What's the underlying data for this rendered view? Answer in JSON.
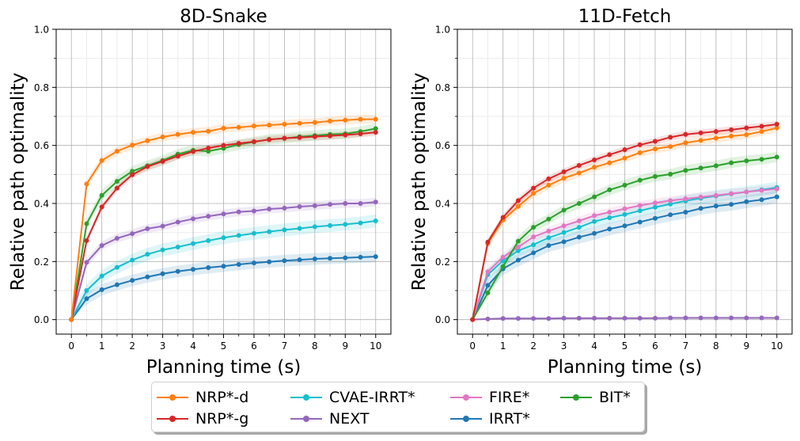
{
  "chart_data": [
    {
      "type": "line",
      "title": "8D-Snake",
      "xlabel": "Planning time (s)",
      "ylabel": "Relative path optimality",
      "xlim": [
        -0.5,
        10.5
      ],
      "ylim": [
        -0.05,
        1.0
      ],
      "xticks": [
        0,
        1,
        2,
        3,
        4,
        5,
        6,
        7,
        8,
        9,
        10
      ],
      "yticks": [
        0.0,
        0.2,
        0.4,
        0.6,
        0.8,
        1.0
      ],
      "xtick_labels": [
        "0",
        "1",
        "2",
        "3",
        "4",
        "5",
        "6",
        "7",
        "8",
        "9",
        "10"
      ],
      "ytick_labels": [
        "0.0",
        "0.2",
        "0.4",
        "0.6",
        "0.8",
        "1.0"
      ],
      "grid": true,
      "x": [
        0,
        0.5,
        1,
        1.5,
        2,
        2.5,
        3,
        3.5,
        4,
        4.5,
        5,
        5.5,
        6,
        6.5,
        7,
        7.5,
        8,
        8.5,
        9,
        9.5,
        10
      ],
      "series": [
        {
          "name": "IRRT*",
          "color": "#1f77b4",
          "band": 0.02,
          "values": [
            0,
            0.072,
            0.103,
            0.12,
            0.135,
            0.147,
            0.158,
            0.166,
            0.173,
            0.179,
            0.184,
            0.19,
            0.195,
            0.199,
            0.203,
            0.206,
            0.209,
            0.211,
            0.213,
            0.215,
            0.217
          ]
        },
        {
          "name": "CVAE-IRRT*",
          "color": "#17becf",
          "band": 0.022,
          "values": [
            0,
            0.1,
            0.15,
            0.18,
            0.205,
            0.225,
            0.24,
            0.25,
            0.262,
            0.272,
            0.282,
            0.29,
            0.297,
            0.303,
            0.309,
            0.314,
            0.32,
            0.324,
            0.328,
            0.333,
            0.34
          ]
        },
        {
          "name": "NEXT",
          "color": "#9467bd",
          "band": 0.015,
          "values": [
            0,
            0.197,
            0.255,
            0.28,
            0.296,
            0.313,
            0.322,
            0.336,
            0.347,
            0.356,
            0.364,
            0.371,
            0.374,
            0.381,
            0.384,
            0.389,
            0.392,
            0.397,
            0.4,
            0.4,
            0.405
          ]
        },
        {
          "name": "BIT*",
          "color": "#2ca02c",
          "band": 0.018,
          "values": [
            0,
            0.33,
            0.428,
            0.476,
            0.511,
            0.53,
            0.548,
            0.57,
            0.583,
            0.58,
            0.59,
            0.603,
            0.612,
            0.621,
            0.624,
            0.63,
            0.634,
            0.638,
            0.64,
            0.648,
            0.658
          ]
        },
        {
          "name": "NRP*-g",
          "color": "#d62728",
          "band": 0.012,
          "values": [
            0,
            0.272,
            0.388,
            0.453,
            0.499,
            0.527,
            0.545,
            0.563,
            0.579,
            0.591,
            0.6,
            0.607,
            0.613,
            0.62,
            0.625,
            0.627,
            0.63,
            0.633,
            0.636,
            0.64,
            0.645
          ]
        },
        {
          "name": "NRP*-d",
          "color": "#ff7f0e",
          "band": 0.015,
          "values": [
            0,
            0.467,
            0.548,
            0.58,
            0.601,
            0.616,
            0.629,
            0.638,
            0.645,
            0.649,
            0.659,
            0.662,
            0.667,
            0.67,
            0.673,
            0.676,
            0.679,
            0.684,
            0.687,
            0.69,
            0.69
          ]
        }
      ]
    },
    {
      "type": "line",
      "title": "11D-Fetch",
      "xlabel": "Planning time (s)",
      "ylabel": "Relative path optimality",
      "xlim": [
        -0.5,
        10.5
      ],
      "ylim": [
        -0.05,
        1.0
      ],
      "xticks": [
        0,
        1,
        2,
        3,
        4,
        5,
        6,
        7,
        8,
        9,
        10
      ],
      "yticks": [
        0.0,
        0.2,
        0.4,
        0.6,
        0.8,
        1.0
      ],
      "xtick_labels": [
        "0",
        "1",
        "2",
        "3",
        "4",
        "5",
        "6",
        "7",
        "8",
        "9",
        "10"
      ],
      "ytick_labels": [
        "0.0",
        "0.2",
        "0.4",
        "0.6",
        "0.8",
        "1.0"
      ],
      "grid": true,
      "x": [
        0,
        0.5,
        1,
        1.5,
        2,
        2.5,
        3,
        3.5,
        4,
        4.5,
        5,
        5.5,
        6,
        6.5,
        7,
        7.5,
        8,
        8.5,
        9,
        9.5,
        10
      ],
      "series": [
        {
          "name": "NEXT",
          "color": "#9467bd",
          "band": 0.003,
          "values": [
            0,
            0.002,
            0.004,
            0.004,
            0.004,
            0.004,
            0.005,
            0.005,
            0.005,
            0.005,
            0.005,
            0.005,
            0.005,
            0.006,
            0.006,
            0.006,
            0.006,
            0.006,
            0.006,
            0.006,
            0.006
          ]
        },
        {
          "name": "IRRT*",
          "color": "#1f77b4",
          "band": 0.022,
          "values": [
            0,
            0.118,
            0.175,
            0.205,
            0.23,
            0.255,
            0.268,
            0.284,
            0.297,
            0.312,
            0.323,
            0.336,
            0.349,
            0.361,
            0.37,
            0.383,
            0.391,
            0.397,
            0.406,
            0.413,
            0.423
          ]
        },
        {
          "name": "CVAE-IRRT*",
          "color": "#17becf",
          "band": 0.02,
          "values": [
            0,
            0.155,
            0.203,
            0.237,
            0.258,
            0.282,
            0.3,
            0.318,
            0.338,
            0.351,
            0.362,
            0.375,
            0.387,
            0.398,
            0.409,
            0.418,
            0.426,
            0.433,
            0.44,
            0.447,
            0.455
          ]
        },
        {
          "name": "FIRE*",
          "color": "#e377c2",
          "band": 0.015,
          "values": [
            0,
            0.165,
            0.215,
            0.25,
            0.285,
            0.305,
            0.323,
            0.34,
            0.358,
            0.37,
            0.382,
            0.393,
            0.402,
            0.41,
            0.416,
            0.422,
            0.428,
            0.434,
            0.44,
            0.445,
            0.45
          ]
        },
        {
          "name": "BIT*",
          "color": "#2ca02c",
          "band": 0.018,
          "values": [
            0,
            0.092,
            0.183,
            0.27,
            0.318,
            0.346,
            0.377,
            0.4,
            0.423,
            0.447,
            0.463,
            0.48,
            0.493,
            0.501,
            0.514,
            0.522,
            0.53,
            0.54,
            0.547,
            0.552,
            0.56
          ]
        },
        {
          "name": "NRP*-d",
          "color": "#ff7f0e",
          "band": 0.015,
          "values": [
            0,
            0.262,
            0.343,
            0.39,
            0.435,
            0.463,
            0.487,
            0.505,
            0.525,
            0.54,
            0.556,
            0.575,
            0.588,
            0.596,
            0.609,
            0.617,
            0.625,
            0.632,
            0.637,
            0.648,
            0.66
          ]
        },
        {
          "name": "NRP*-g",
          "color": "#d62728",
          "band": 0.012,
          "values": [
            0,
            0.267,
            0.352,
            0.41,
            0.453,
            0.485,
            0.509,
            0.531,
            0.55,
            0.568,
            0.585,
            0.602,
            0.614,
            0.628,
            0.638,
            0.643,
            0.648,
            0.654,
            0.66,
            0.666,
            0.673
          ]
        }
      ]
    }
  ],
  "legend": [
    {
      "name": "NRP*-d",
      "color": "#ff7f0e"
    },
    {
      "name": "NRP*-g",
      "color": "#d62728"
    },
    {
      "name": "CVAE-IRRT*",
      "color": "#17becf"
    },
    {
      "name": "NEXT",
      "color": "#9467bd"
    },
    {
      "name": "FIRE*",
      "color": "#e377c2"
    },
    {
      "name": "IRRT*",
      "color": "#1f77b4"
    },
    {
      "name": "BIT*",
      "color": "#2ca02c"
    }
  ]
}
